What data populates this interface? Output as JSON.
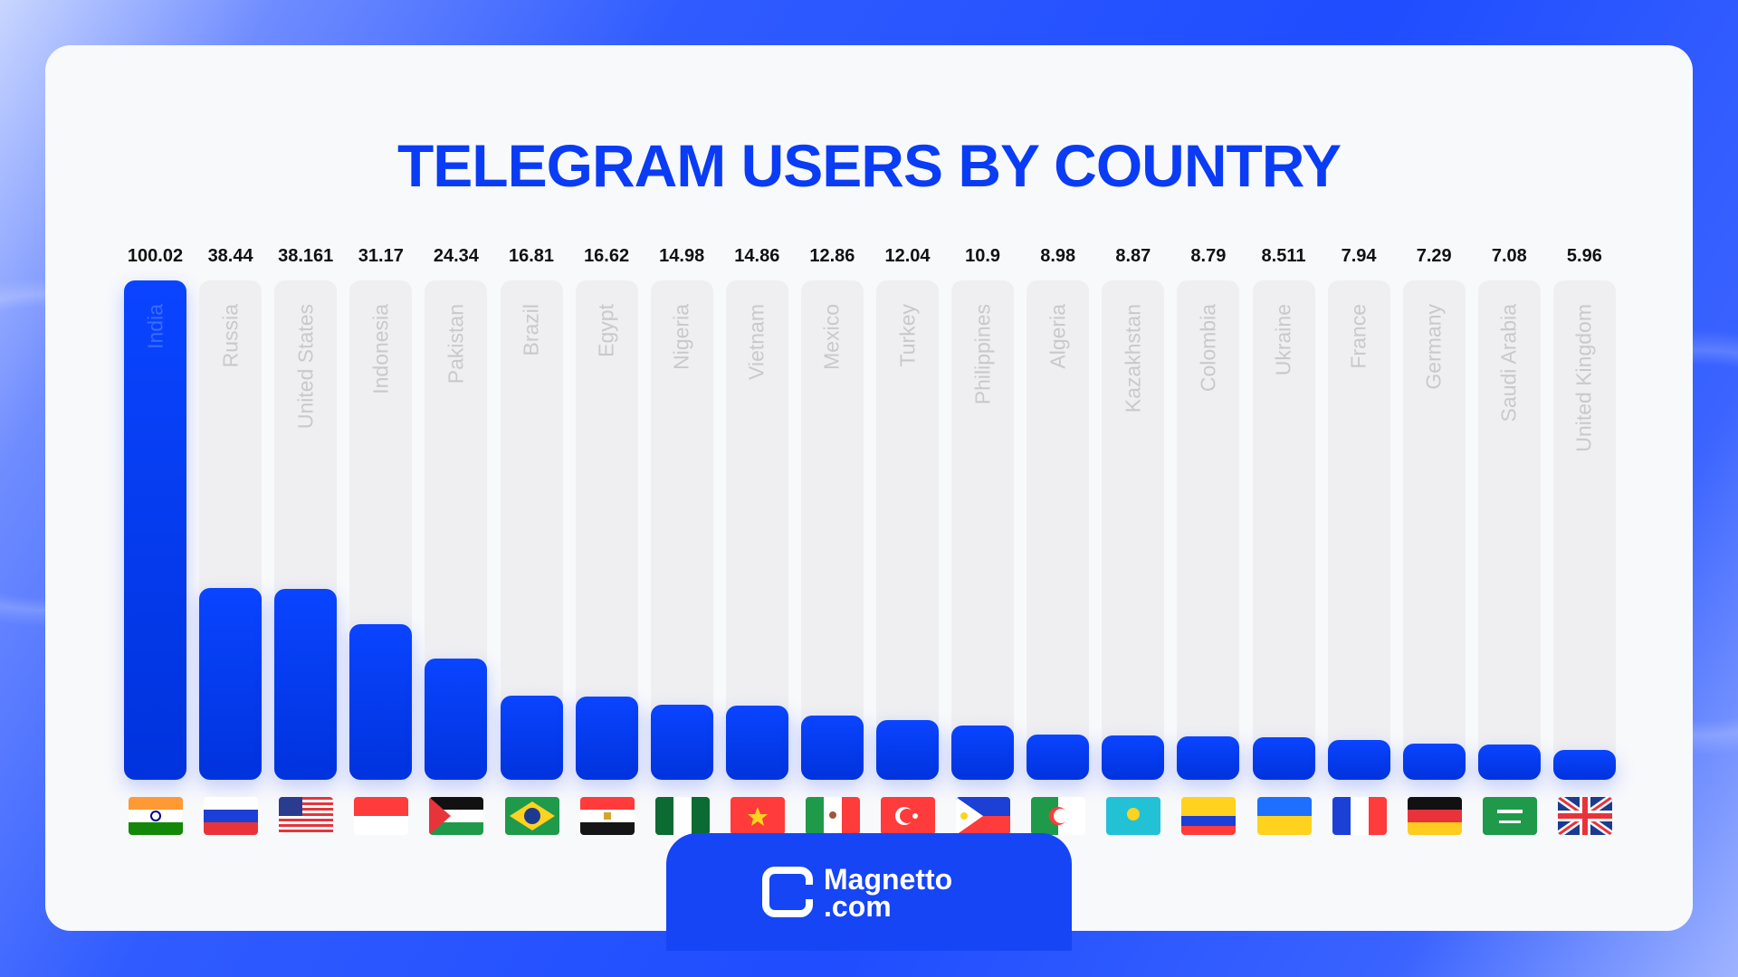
{
  "chart_data": {
    "type": "bar",
    "title": "TELEGRAM USERS BY COUNTRY",
    "categories": [
      "India",
      "Russia",
      "United States",
      "Indonesia",
      "Pakistan",
      "Brazil",
      "Egypt",
      "Nigeria",
      "Vietnam",
      "Mexico",
      "Turkey",
      "Philippines",
      "Algeria",
      "Kazakhstan",
      "Colombia",
      "Ukraine",
      "France",
      "Germany",
      "Saudi Arabia",
      "United Kingdom"
    ],
    "values": [
      100.02,
      38.44,
      38.161,
      31.17,
      24.34,
      16.81,
      16.62,
      14.98,
      14.86,
      12.86,
      12.04,
      10.9,
      8.98,
      8.87,
      8.79,
      8.511,
      7.94,
      7.29,
      7.08,
      5.96
    ],
    "value_labels": [
      "100.02",
      "38.44",
      "38.161",
      "31.17",
      "24.34",
      "16.81",
      "16.62",
      "14.98",
      "14.86",
      "12.86",
      "12.04",
      "10.9",
      "8.98",
      "8.87",
      "8.79",
      "8.511",
      "7.94",
      "7.29",
      "7.08",
      "5.96"
    ],
    "ylim": [
      0,
      100.02
    ],
    "grid": false,
    "bar_color": "#0a44ff",
    "flags": [
      "in",
      "ru",
      "us",
      "id",
      "ps",
      "br",
      "eg",
      "ng",
      "vn",
      "mx",
      "tr",
      "ph",
      "dz",
      "kz",
      "co",
      "ua",
      "fr",
      "de",
      "sa",
      "gb"
    ]
  },
  "brand": {
    "name": "Magnetto",
    ".com": ".com",
    "line1": "Magnetto",
    "line2": ".com"
  }
}
